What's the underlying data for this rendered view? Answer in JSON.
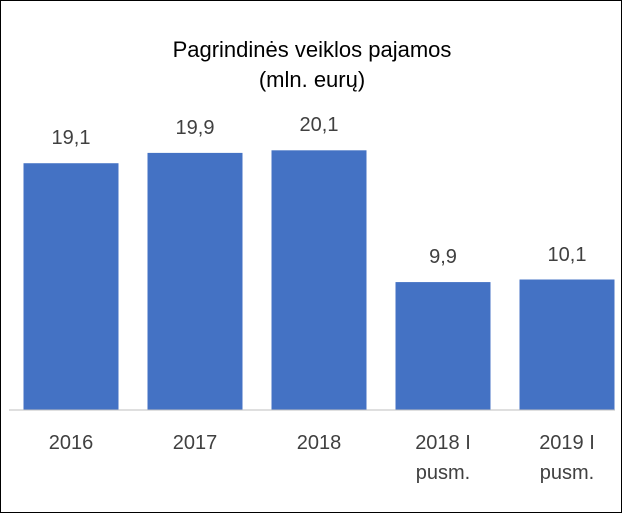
{
  "chart_data": {
    "type": "bar",
    "title": "Pagrindinės veiklos pajamos (mln. eurų)",
    "categories": [
      "2016",
      "2017",
      "2018",
      "2018 I pusm.",
      "2019 I pusm."
    ],
    "values": [
      19.1,
      19.9,
      20.1,
      9.9,
      10.1
    ],
    "value_labels": [
      "19,1",
      "19,9",
      "20,1",
      "9,9",
      "10,1"
    ],
    "color": "#4472c4",
    "ylim": [
      0,
      25
    ]
  }
}
